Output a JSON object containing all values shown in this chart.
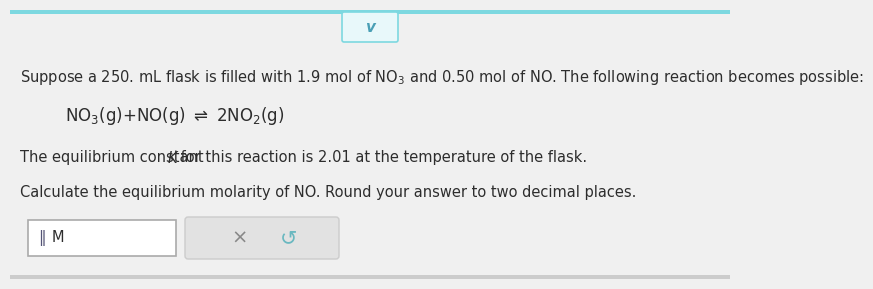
{
  "bg_color": "#f0f0f0",
  "top_bar_color": "#7dd8e0",
  "tab_color": "#e8f8fa",
  "tab_border_color": "#7dd8e0",
  "chevron_color": "#4a9fb5",
  "line1": "Suppose a 250. mL flask is filled with 1.9 mol of NO$_3$ and 0.50 mol of NO. The following reaction becomes possible:",
  "reaction": "NO$_3$(g)+NO(g) $\\rightleftharpoons$ 2NO$_2$(g)",
  "line3_pre": "The equilibrium constant ",
  "line3_K": "K",
  "line3_post": " for this reaction is 2.01 at the temperature of the flask.",
  "line4": "Calculate the equilibrium molarity of NO. Round your answer to two decimal places.",
  "input_label": "M",
  "text_color": "#2d2d2d",
  "font_size": 10.5,
  "reaction_font_size": 12,
  "box_bg": "#ffffff",
  "box_border": "#aaaaaa",
  "button_bg": "#e2e2e2",
  "button_border": "#cccccc",
  "x_color": "#888888",
  "refresh_color": "#6ab8c0"
}
